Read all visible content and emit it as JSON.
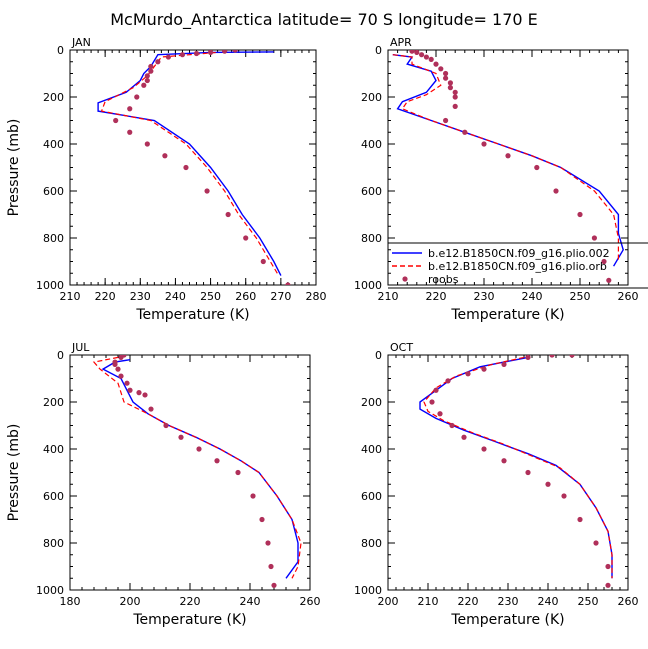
{
  "title": "McMurdo_Antarctica  latitude= 70 S longitude= 170 E",
  "colors": {
    "model1": "#0000ff",
    "model2": "#ff0000",
    "obs": "#b0305a",
    "axis": "#000000"
  },
  "legend": {
    "entries": [
      {
        "label": "b.e12.B1850CN.f09_g16.plio.002",
        "style": "solid",
        "color": "#0000ff"
      },
      {
        "label": "b.e12.B1850CN.f09_g16.plio.orb",
        "style": "dashed",
        "color": "#ff0000"
      },
      {
        "label": "roobs",
        "style": "dot",
        "color": "#b0305a"
      }
    ]
  },
  "chart_data": [
    {
      "type": "line",
      "panel": "JAN",
      "title": "JAN",
      "xlabel": "Temperature (K)",
      "ylabel": "Pressure (mb)",
      "xlim": [
        210,
        280
      ],
      "ylim": [
        1000,
        0
      ],
      "y_reversed": true,
      "xticks": [
        210,
        220,
        230,
        240,
        250,
        260,
        270,
        280
      ],
      "yticks": [
        0,
        200,
        400,
        600,
        800,
        1000
      ],
      "series": [
        {
          "name": "b.e12.B1850CN.f09_g16.plio.002",
          "style": "solid",
          "points": [
            [
              270,
              960
            ],
            [
              268,
              900
            ],
            [
              264,
              800
            ],
            [
              259,
              700
            ],
            [
              255,
              600
            ],
            [
              250,
              500
            ],
            [
              244,
              400
            ],
            [
              234,
              300
            ],
            [
              218,
              260
            ],
            [
              218,
              225
            ],
            [
              226,
              180
            ],
            [
              230,
              130
            ],
            [
              231,
              100
            ],
            [
              233,
              70
            ],
            [
              235,
              20
            ],
            [
              250,
              10
            ],
            [
              268,
              8
            ]
          ]
        },
        {
          "name": "b.e12.B1850CN.f09_g16.plio.orb",
          "style": "dashed",
          "points": [
            [
              269,
              950
            ],
            [
              267,
              900
            ],
            [
              263,
              800
            ],
            [
              258,
              700
            ],
            [
              254,
              600
            ],
            [
              249,
              500
            ],
            [
              243,
              400
            ],
            [
              233,
              300
            ],
            [
              219,
              260
            ],
            [
              220,
              220
            ],
            [
              228,
              160
            ],
            [
              232,
              110
            ],
            [
              234,
              70
            ],
            [
              236,
              30
            ],
            [
              252,
              10
            ]
          ]
        },
        {
          "name": "roobs",
          "style": "dot",
          "points": [
            [
              257,
              0
            ],
            [
              254,
              5
            ],
            [
              250,
              10
            ],
            [
              246,
              15
            ],
            [
              242,
              20
            ],
            [
              238,
              30
            ],
            [
              235,
              50
            ],
            [
              233,
              70
            ],
            [
              233,
              90
            ],
            [
              232,
              110
            ],
            [
              232,
              130
            ],
            [
              231,
              150
            ],
            [
              229,
              200
            ],
            [
              227,
              250
            ],
            [
              223,
              300
            ],
            [
              227,
              350
            ],
            [
              232,
              400
            ],
            [
              237,
              450
            ],
            [
              243,
              500
            ],
            [
              249,
              600
            ],
            [
              255,
              700
            ],
            [
              260,
              800
            ],
            [
              265,
              900
            ],
            [
              272,
              1000
            ]
          ]
        }
      ]
    },
    {
      "type": "line",
      "panel": "APR",
      "title": "APR",
      "xlabel": "Temperature (K)",
      "ylabel": "",
      "xlim": [
        210,
        260
      ],
      "ylim": [
        1000,
        0
      ],
      "y_reversed": true,
      "xticks": [
        210,
        220,
        230,
        240,
        250,
        260
      ],
      "yticks": [
        0,
        200,
        400,
        600,
        800,
        1000
      ],
      "series": [
        {
          "name": "b.e12.B1850CN.f09_g16.plio.002",
          "style": "solid",
          "points": [
            [
              211,
              20
            ],
            [
              215,
              30
            ],
            [
              214,
              60
            ],
            [
              219,
              90
            ],
            [
              220,
              130
            ],
            [
              218,
              180
            ],
            [
              213,
              220
            ],
            [
              212,
              250
            ],
            [
              219,
              300
            ],
            [
              226,
              350
            ],
            [
              233,
              400
            ],
            [
              240,
              450
            ],
            [
              246,
              500
            ],
            [
              254,
              600
            ],
            [
              258,
              700
            ],
            [
              258,
              780
            ],
            [
              259,
              850
            ],
            [
              257,
              920
            ]
          ]
        },
        {
          "name": "b.e12.B1850CN.f09_g16.plio.orb",
          "style": "dashed",
          "points": [
            [
              211,
              20
            ],
            [
              215,
              30
            ],
            [
              215,
              60
            ],
            [
              220,
              100
            ],
            [
              221,
              150
            ],
            [
              218,
              190
            ],
            [
              214,
              220
            ],
            [
              213,
              250
            ],
            [
              219,
              300
            ],
            [
              226,
              350
            ],
            [
              233,
              400
            ],
            [
              240,
              450
            ],
            [
              246,
              500
            ],
            [
              253,
              600
            ],
            [
              257,
              700
            ],
            [
              258,
              800
            ],
            [
              258,
              900
            ]
          ]
        },
        {
          "name": "roobs",
          "style": "dot",
          "points": [
            [
              215,
              0
            ],
            [
              215,
              5
            ],
            [
              216,
              10
            ],
            [
              217,
              20
            ],
            [
              218,
              30
            ],
            [
              219,
              40
            ],
            [
              220,
              60
            ],
            [
              221,
              80
            ],
            [
              222,
              100
            ],
            [
              222,
              120
            ],
            [
              223,
              140
            ],
            [
              223,
              160
            ],
            [
              224,
              180
            ],
            [
              224,
              200
            ],
            [
              224,
              240
            ],
            [
              222,
              300
            ],
            [
              226,
              350
            ],
            [
              230,
              400
            ],
            [
              235,
              450
            ],
            [
              241,
              500
            ],
            [
              245,
              600
            ],
            [
              250,
              700
            ],
            [
              253,
              800
            ],
            [
              255,
              900
            ],
            [
              256,
              980
            ]
          ]
        }
      ]
    },
    {
      "type": "line",
      "panel": "JUL",
      "title": "JUL",
      "xlabel": "Temperature (K)",
      "ylabel": "Pressure (mb)",
      "xlim": [
        180,
        260
      ],
      "ylim": [
        1000,
        0
      ],
      "y_reversed": true,
      "xticks": [
        180,
        200,
        220,
        240,
        260
      ],
      "yticks": [
        0,
        200,
        400,
        600,
        800,
        1000
      ],
      "series": [
        {
          "name": "b.e12.B1850CN.f09_g16.plio.002",
          "style": "solid",
          "points": [
            [
              200,
              20
            ],
            [
              195,
              30
            ],
            [
              191,
              60
            ],
            [
              197,
              100
            ],
            [
              199,
              150
            ],
            [
              201,
              200
            ],
            [
              206,
              250
            ],
            [
              213,
              300
            ],
            [
              222,
              350
            ],
            [
              230,
              400
            ],
            [
              237,
              450
            ],
            [
              243,
              500
            ],
            [
              249,
              600
            ],
            [
              254,
              700
            ],
            [
              256,
              800
            ],
            [
              256,
              880
            ],
            [
              252,
              950
            ]
          ]
        },
        {
          "name": "b.e12.B1850CN.f09_g16.plio.orb",
          "style": "dashed",
          "points": [
            [
              196,
              10
            ],
            [
              188,
              30
            ],
            [
              190,
              60
            ],
            [
              196,
              120
            ],
            [
              198,
              200
            ],
            [
              206,
              250
            ],
            [
              213,
              300
            ],
            [
              222,
              350
            ],
            [
              230,
              400
            ],
            [
              237,
              450
            ],
            [
              243,
              500
            ],
            [
              249,
              600
            ],
            [
              254,
              700
            ],
            [
              257,
              800
            ],
            [
              256,
              900
            ],
            [
              254,
              950
            ]
          ]
        },
        {
          "name": "roobs",
          "style": "dot",
          "points": [
            [
              198,
              0
            ],
            [
              197,
              10
            ],
            [
              195,
              30
            ],
            [
              195,
              40
            ],
            [
              196,
              60
            ],
            [
              197,
              90
            ],
            [
              199,
              120
            ],
            [
              200,
              150
            ],
            [
              203,
              160
            ],
            [
              205,
              170
            ],
            [
              207,
              230
            ],
            [
              212,
              300
            ],
            [
              217,
              350
            ],
            [
              223,
              400
            ],
            [
              229,
              450
            ],
            [
              236,
              500
            ],
            [
              241,
              600
            ],
            [
              244,
              700
            ],
            [
              246,
              800
            ],
            [
              247,
              900
            ],
            [
              248,
              980
            ]
          ]
        }
      ]
    },
    {
      "type": "line",
      "panel": "OCT",
      "title": "OCT",
      "xlabel": "Temperature (K)",
      "ylabel": "",
      "xlim": [
        200,
        260
      ],
      "ylim": [
        1000,
        0
      ],
      "y_reversed": true,
      "xticks": [
        200,
        210,
        220,
        230,
        240,
        250,
        260
      ],
      "yticks": [
        0,
        200,
        400,
        600,
        800,
        1000
      ],
      "series": [
        {
          "name": "b.e12.B1850CN.f09_g16.plio.002",
          "style": "solid",
          "points": [
            [
              235,
              10
            ],
            [
              229,
              30
            ],
            [
              223,
              50
            ],
            [
              216,
              100
            ],
            [
              212,
              150
            ],
            [
              208,
              200
            ],
            [
              208,
              230
            ],
            [
              212,
              270
            ],
            [
              219,
              320
            ],
            [
              227,
              370
            ],
            [
              235,
              420
            ],
            [
              242,
              470
            ],
            [
              248,
              550
            ],
            [
              252,
              650
            ],
            [
              255,
              750
            ],
            [
              256,
              850
            ],
            [
              256,
              950
            ]
          ]
        },
        {
          "name": "b.e12.B1850CN.f09_g16.plio.orb",
          "style": "dashed",
          "points": [
            [
              234,
              10
            ],
            [
              226,
              40
            ],
            [
              217,
              90
            ],
            [
              212,
              140
            ],
            [
              209,
              200
            ],
            [
              210,
              240
            ],
            [
              214,
              280
            ],
            [
              221,
              330
            ],
            [
              229,
              380
            ],
            [
              236,
              430
            ],
            [
              243,
              480
            ],
            [
              248,
              550
            ],
            [
              252,
              650
            ],
            [
              255,
              750
            ],
            [
              256,
              850
            ],
            [
              256,
              950
            ]
          ]
        },
        {
          "name": "roobs",
          "style": "dot",
          "points": [
            [
              246,
              0
            ],
            [
              241,
              0
            ],
            [
              235,
              10
            ],
            [
              229,
              40
            ],
            [
              224,
              60
            ],
            [
              220,
              80
            ],
            [
              215,
              110
            ],
            [
              212,
              150
            ],
            [
              211,
              200
            ],
            [
              213,
              250
            ],
            [
              216,
              300
            ],
            [
              219,
              350
            ],
            [
              224,
              400
            ],
            [
              229,
              450
            ],
            [
              235,
              500
            ],
            [
              240,
              550
            ],
            [
              244,
              600
            ],
            [
              248,
              700
            ],
            [
              252,
              800
            ],
            [
              255,
              900
            ],
            [
              255,
              980
            ]
          ]
        }
      ]
    }
  ]
}
